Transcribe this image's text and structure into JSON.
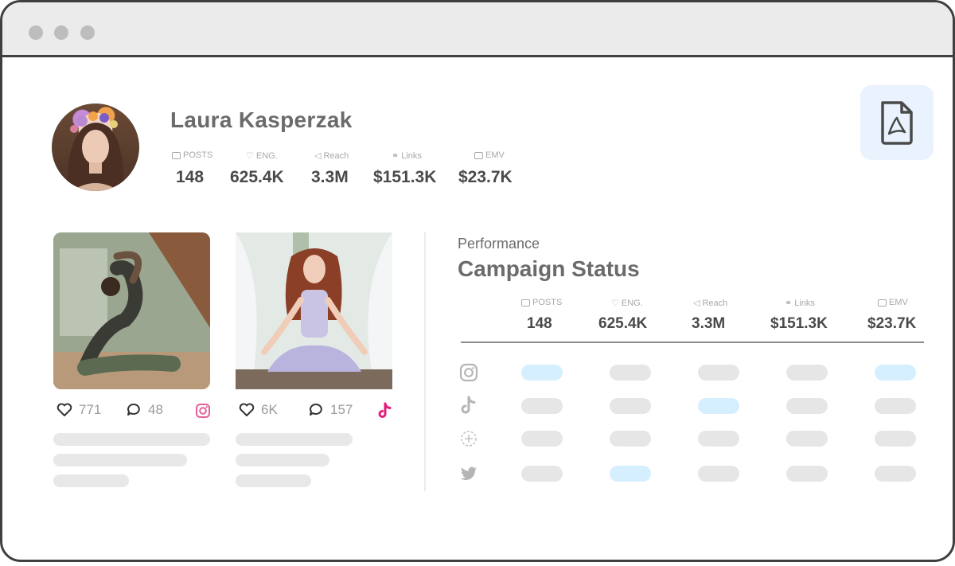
{
  "profile": {
    "name": "Laura Kasperzak",
    "stats": [
      {
        "label": "POSTS",
        "value": "148"
      },
      {
        "label": "ENG.",
        "value": "625.4K"
      },
      {
        "label": "Reach",
        "value": "3.3M"
      },
      {
        "label": "Links",
        "value": "$151.3K"
      },
      {
        "label": "EMV",
        "value": "$23.7K"
      }
    ]
  },
  "posts": [
    {
      "likes": "771",
      "comments": "48",
      "platform": "instagram"
    },
    {
      "likes": "6K",
      "comments": "157",
      "platform": "tiktok"
    }
  ],
  "campaign": {
    "section_label": "Performance",
    "title": "Campaign Status",
    "stats": [
      {
        "label": "POSTS",
        "value": "148"
      },
      {
        "label": "ENG.",
        "value": "625.4K"
      },
      {
        "label": "Reach",
        "value": "3.3M"
      },
      {
        "label": "Links",
        "value": "$151.3K"
      },
      {
        "label": "EMV",
        "value": "$23.7K"
      }
    ],
    "rows": [
      {
        "platform": "instagram-icon",
        "active": [
          true,
          false,
          false,
          false,
          true
        ]
      },
      {
        "platform": "tiktok-icon",
        "active": [
          false,
          false,
          true,
          false,
          false
        ]
      },
      {
        "platform": "circle-plus-icon",
        "active": [
          false,
          false,
          false,
          false,
          false
        ]
      },
      {
        "platform": "twitter-icon",
        "active": [
          false,
          true,
          false,
          false,
          false
        ]
      }
    ]
  },
  "colors": {
    "active_pill": "#d6efff",
    "inactive_pill": "#e6e6e6",
    "pdf_button_bg": "#eaf2fe",
    "tiktok_pink": "#e6197a",
    "instagram_pink": "#e4609a"
  }
}
